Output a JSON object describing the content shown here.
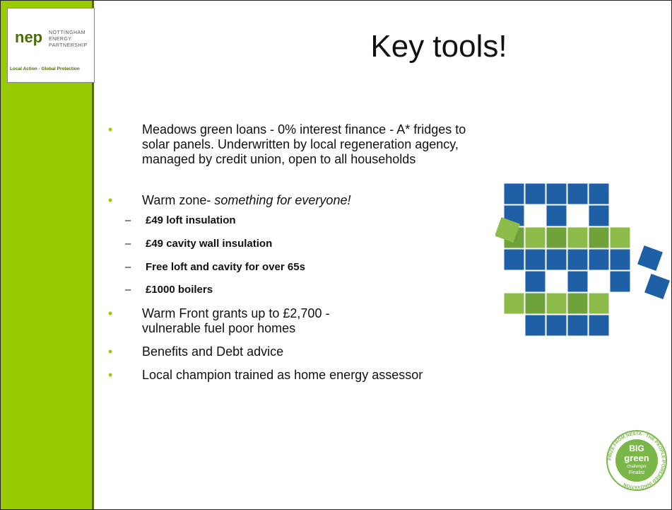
{
  "logo": {
    "mark": "nep",
    "name_lines": [
      "NOTTINGHAM",
      "ENERGY",
      "PARTNERSHIP"
    ],
    "tagline": "Local Action - Global Protection"
  },
  "title": "Key tools!",
  "bullets": [
    {
      "text": "Meadows green loans - 0% interest finance - A* fridges to solar panels. Underwritten by local regeneration agency,  managed by credit union, open to all households"
    },
    {
      "text": "Warm zone- ",
      "emphasis": "something for everyone!",
      "sub": [
        "£49 loft insulation",
        "£49 cavity wall insulation",
        "Free loft and cavity for over 65s",
        "£1000 boilers"
      ]
    },
    {
      "text": "Warm Front grants up to £2,700 -vulnerable fuel poor homes"
    },
    {
      "text": "Benefits and Debt advice"
    },
    {
      "text": "Local champion trained as home energy assessor"
    }
  ],
  "badge": {
    "lines": [
      "BIG",
      "green",
      "challenger",
      "Finalist"
    ],
    "ring": "PRIZE FROM NESTA · THE PEOPLE-POWERED INNOVATION"
  }
}
